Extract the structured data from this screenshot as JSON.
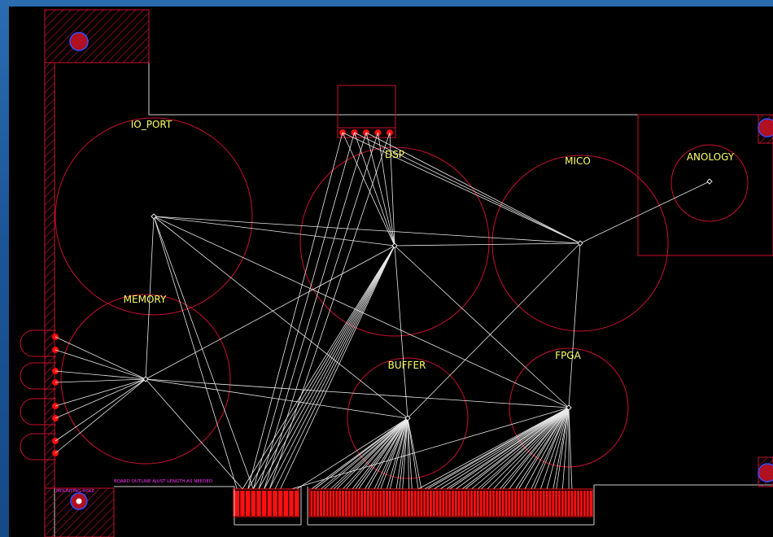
{
  "colors": {
    "background": "#000000",
    "frame": "#1d5a9a",
    "placement_circle": "#c8102e",
    "outline": "#d0d0d0",
    "ratsnest": "#e8e8e8",
    "label": "#ffff66",
    "silk_note": "#ff33ff",
    "pad": "#ff1010"
  },
  "components": [
    {
      "id": "io_port",
      "label": "IO_PORT"
    },
    {
      "id": "dsp",
      "label": "DSP"
    },
    {
      "id": "mico",
      "label": "MICO"
    },
    {
      "id": "anology",
      "label": "ANOLOGY"
    },
    {
      "id": "memory",
      "label": "MEMORY"
    },
    {
      "id": "buffer",
      "label": "BUFFER"
    },
    {
      "id": "fpga",
      "label": "FPGA"
    }
  ],
  "notes": {
    "mounting_hole": "MOUNTING HOLE",
    "board_outline": "BOARD OUTLINE AJUST LENGTH AS NEEDED"
  },
  "edge_connector": {
    "left_pins": 12,
    "right_pins": 90
  },
  "header_pins": 5,
  "side_connector_pins": 8
}
